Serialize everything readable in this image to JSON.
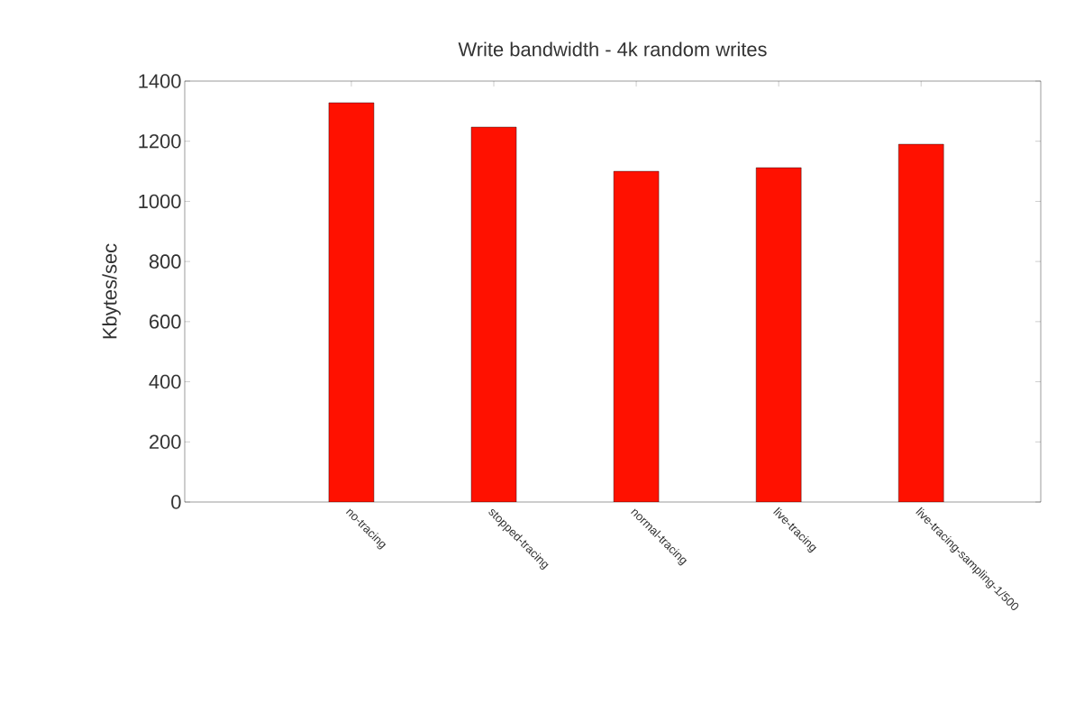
{
  "chart_data": {
    "type": "bar",
    "title": "Write bandwidth - 4k random writes",
    "ylabel": "Kbytes/sec",
    "categories": [
      "no-tracing",
      "stopped-tracing",
      "normal-tracing",
      "live-tracing",
      "live-tracing-sampling-1/500"
    ],
    "values": [
      1328,
      1247,
      1100,
      1112,
      1190
    ],
    "color": "#ff1100",
    "ylim": [
      0,
      1400
    ],
    "yticks": [
      0,
      200,
      400,
      600,
      800,
      1000,
      1200,
      1400
    ],
    "grid": false
  }
}
